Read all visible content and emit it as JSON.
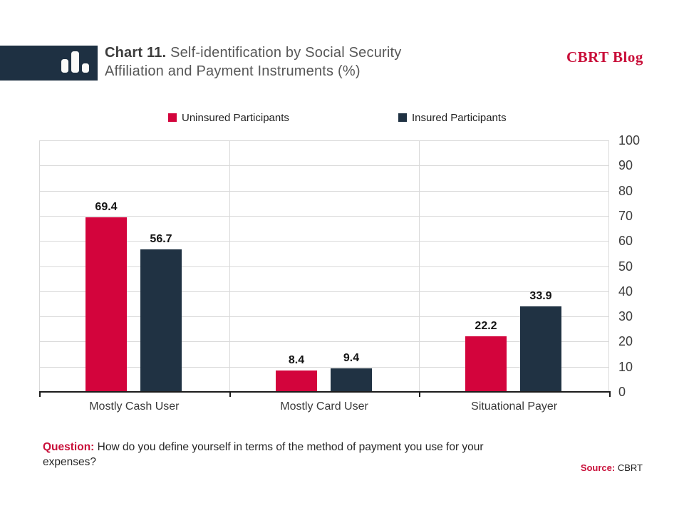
{
  "header": {
    "title_prefix": "Chart 11.",
    "title_rest": "Self-identification by Social Security Affiliation and Payment Instruments (%)",
    "brand": "CBRT Blog",
    "logo_icon": "bar-chart-icon"
  },
  "chart_data": {
    "type": "bar",
    "title": "Chart 11. Self-identification by Social Security Affiliation and Payment Instruments (%)",
    "categories": [
      "Mostly Cash User",
      "Mostly Card User",
      "Situational Payer"
    ],
    "series": [
      {
        "name": "Uninsured Participants",
        "color": "#D3043C",
        "values": [
          69.4,
          8.4,
          22.2
        ]
      },
      {
        "name": "Insured Participants",
        "color": "#203243",
        "values": [
          56.7,
          9.4,
          33.9
        ]
      }
    ],
    "xlabel": "",
    "ylabel": "",
    "ylim": [
      0,
      100
    ],
    "ytick_step": 10,
    "yaxis_side": "right",
    "grid": true,
    "legend_position": "top",
    "value_labels": true
  },
  "footer": {
    "question_label": "Question:",
    "question_text": "How do you define yourself in terms of the method of payment you use for your expenses?",
    "source_label": "Source:",
    "source_value": "CBRT"
  },
  "colors": {
    "accent_red": "#D3043C",
    "navy": "#203243",
    "brand_red": "#C9103A",
    "gridline": "#D9D9D9",
    "axis": "#1C1C1C"
  }
}
